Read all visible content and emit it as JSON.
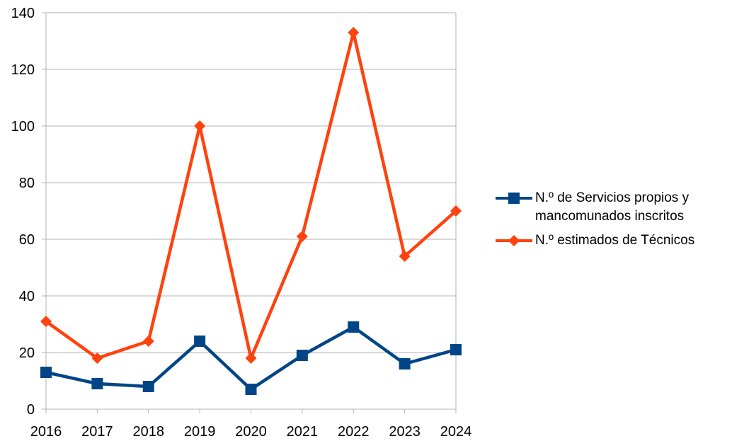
{
  "chart_data": {
    "type": "line",
    "categories": [
      "2016",
      "2017",
      "2018",
      "2019",
      "2020",
      "2021",
      "2022",
      "2023",
      "2024"
    ],
    "series": [
      {
        "name": "N.º de Servicios propios y\nmancomunados inscritos",
        "values": [
          13,
          9,
          8,
          24,
          7,
          19,
          29,
          16,
          21
        ],
        "color": "#004586",
        "marker": "square"
      },
      {
        "name": "N.º estimados de Técnicos",
        "values": [
          31,
          18,
          24,
          100,
          18,
          61,
          133,
          54,
          70
        ],
        "color": "#ff420e",
        "marker": "diamond"
      }
    ],
    "ylim": [
      0,
      140
    ],
    "yticks": [
      0,
      20,
      40,
      60,
      80,
      100,
      120,
      140
    ],
    "grid": true,
    "legend": "right",
    "xlabel": "",
    "ylabel": "",
    "title": ""
  }
}
